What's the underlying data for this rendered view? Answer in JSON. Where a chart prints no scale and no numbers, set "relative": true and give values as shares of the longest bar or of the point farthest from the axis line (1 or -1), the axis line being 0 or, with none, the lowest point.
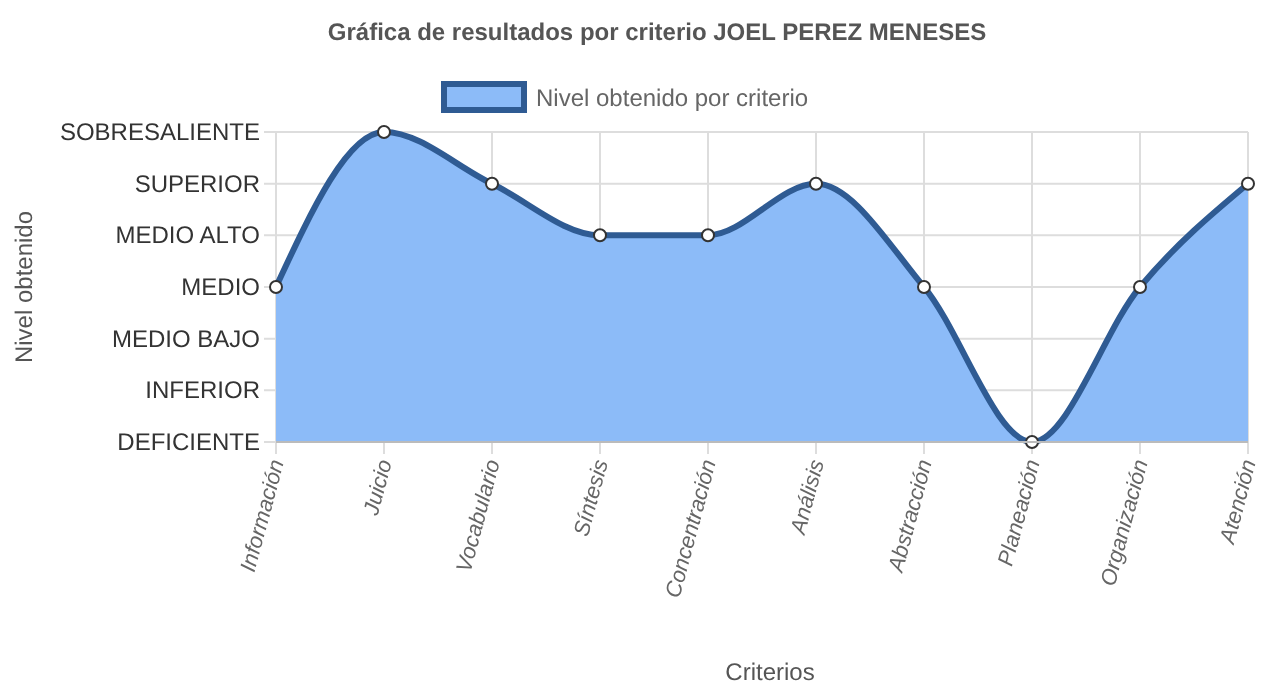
{
  "chart_data": {
    "type": "area",
    "title": "Gráfica de resultados por criterio JOEL PEREZ MENESES",
    "xlabel": "Criterios",
    "categories": [
      "Información",
      "Juicio",
      "Vocabulario",
      "Síntesis",
      "Concentración",
      "Análisis",
      "Abstracción",
      "Planeación",
      "Organización",
      "Atención"
    ],
    "series": [
      {
        "name": "Nivel obtenido por criterio",
        "color": "#2f5b93",
        "values": [
          0.5,
          1,
          0.833,
          0.667,
          0.667,
          0.833,
          0.5,
          0,
          0.5,
          0.833
        ]
      }
    ],
    "relative": true,
    "annotations": [
      "DEFICIENTE",
      "INFERIOR",
      "MEDIO BAJO",
      "MEDIO",
      "MEDIO ALTO",
      "SUPERIOR",
      "SOBRESALIENTE",
      "Nivel obtenido"
    ],
    "grid": true,
    "legend": "top",
    "marker": "circle"
  }
}
